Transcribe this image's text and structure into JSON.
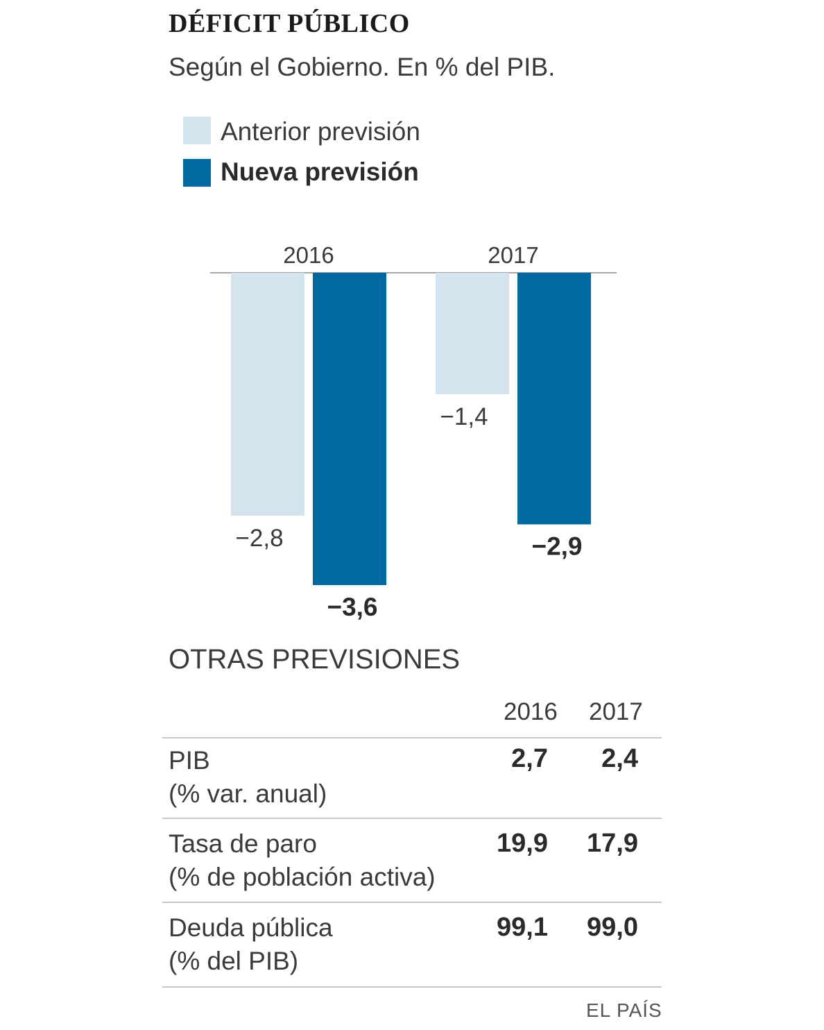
{
  "title": "DÉFICIT PÚBLICO",
  "subtitle": "Según el Gobierno. En % del PIB.",
  "colors": {
    "anterior": "#d3e4ee",
    "nueva": "#006aa0",
    "axis": "#888888"
  },
  "chart_data": {
    "type": "bar",
    "title": "DÉFICIT PÚBLICO",
    "subtitle": "Según el Gobierno. En % del PIB.",
    "categories": [
      "2016",
      "2017"
    ],
    "series": [
      {
        "name": "Anterior previsión",
        "values": [
          -2.8,
          -1.4
        ],
        "labels": [
          "−2,8",
          "−1,4"
        ]
      },
      {
        "name": "Nueva previsión",
        "values": [
          -3.6,
          -2.9
        ],
        "labels": [
          "−3,6",
          "−2,9"
        ]
      }
    ],
    "ylim": [
      -3.6,
      0
    ],
    "legend": "top-left",
    "xlabel": "",
    "ylabel": ""
  },
  "table": {
    "title": "OTRAS PREVISIONES",
    "columns": [
      "2016",
      "2017"
    ],
    "rows": [
      {
        "label": "PIB",
        "sublabel": "(% var. anual)",
        "values": [
          "2,7",
          "2,4"
        ]
      },
      {
        "label": "Tasa de paro",
        "sublabel": "(% de población activa)",
        "values": [
          "19,9",
          "17,9"
        ]
      },
      {
        "label": "Deuda pública",
        "sublabel": "(% del PIB)",
        "values": [
          "99,1",
          "99,0"
        ]
      }
    ]
  },
  "credit": "EL PAÍS"
}
